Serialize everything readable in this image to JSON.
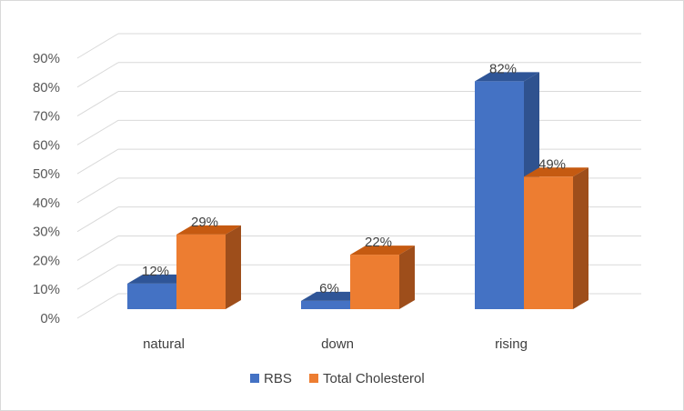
{
  "chart_data": {
    "type": "bar",
    "style": "3d-clustered-column",
    "categories": [
      "natural",
      "down",
      "rising"
    ],
    "series": [
      {
        "name": "RBS",
        "values": [
          12,
          6,
          82
        ],
        "labels": [
          "12%",
          "6%",
          "82%"
        ],
        "color": "#4472c4",
        "side_color": "#2f528f",
        "top_color": "#2f5597"
      },
      {
        "name": "Total Cholesterol",
        "values": [
          29,
          22,
          49
        ],
        "labels": [
          "29%",
          "22%",
          "49%"
        ],
        "color": "#ed7d31",
        "side_color": "#9e4e1b",
        "top_color": "#c55a11"
      }
    ],
    "yticks": [
      "0%",
      "10%",
      "20%",
      "30%",
      "40%",
      "50%",
      "60%",
      "70%",
      "80%",
      "90%"
    ],
    "ylim": [
      0,
      90
    ],
    "grid": true,
    "legend_position": "bottom"
  }
}
